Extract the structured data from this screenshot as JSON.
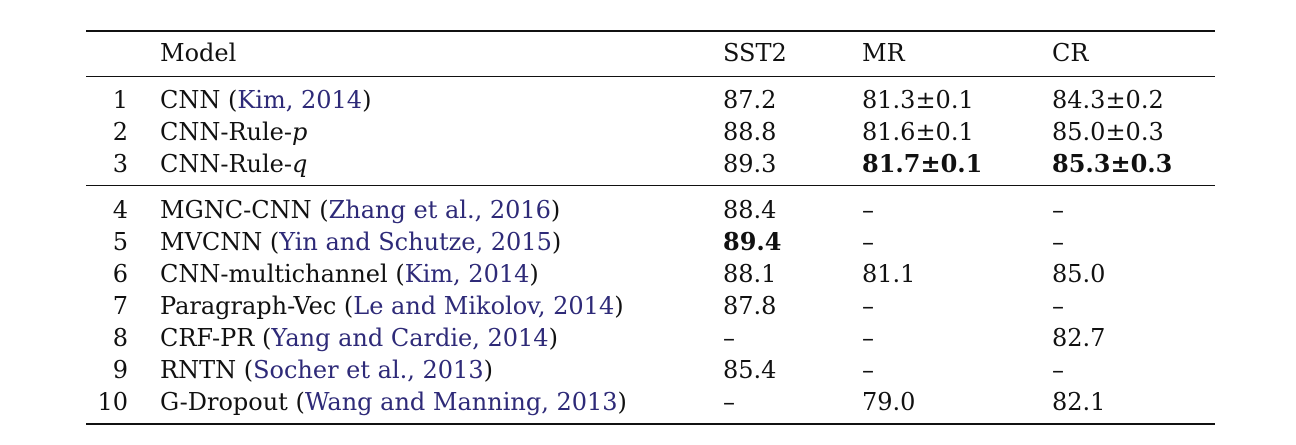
{
  "header": {
    "model": "Model",
    "sst2": "SST2",
    "mr": "MR",
    "cr": "CR"
  },
  "rows": [
    {
      "num": "1",
      "model": "CNN",
      "paren_open": " (",
      "cite": "Kim, 2014",
      "paren_close": ")",
      "suffix": "",
      "sst2": "87.2",
      "mr": "81.3±0.1",
      "cr": "84.3±0.2"
    },
    {
      "num": "2",
      "model": "CNN-Rule-",
      "suffix": "p",
      "sst2": "88.8",
      "mr": "81.6±0.1",
      "cr": "85.0±0.3"
    },
    {
      "num": "3",
      "model": "CNN-Rule-",
      "suffix": "q",
      "sst2": "89.3",
      "mr": "81.7±0.1",
      "cr": "85.3±0.3"
    },
    {
      "num": "4",
      "model": "MGNC-CNN",
      "paren_open": " (",
      "cite": "Zhang et al., 2016",
      "paren_close": ")",
      "sst2": "88.4",
      "mr": "–",
      "cr": "–"
    },
    {
      "num": "5",
      "model": "MVCNN",
      "paren_open": " (",
      "cite": "Yin and Schutze, 2015",
      "paren_close": ")",
      "sst2": "89.4",
      "mr": "–",
      "cr": "–"
    },
    {
      "num": "6",
      "model": "CNN-multichannel",
      "paren_open": " (",
      "cite": "Kim, 2014",
      "paren_close": ")",
      "sst2": "88.1",
      "mr": "81.1",
      "cr": "85.0"
    },
    {
      "num": "7",
      "model": "Paragraph-Vec",
      "paren_open": " (",
      "cite": "Le and Mikolov, 2014",
      "paren_close": ")",
      "sst2": "87.8",
      "mr": "–",
      "cr": "–"
    },
    {
      "num": "8",
      "model": "CRF-PR",
      "paren_open": " (",
      "cite": "Yang and Cardie, 2014",
      "paren_close": ")",
      "sst2": "–",
      "mr": "–",
      "cr": "82.7"
    },
    {
      "num": "9",
      "model": "RNTN",
      "paren_open": " (",
      "cite": "Socher et al., 2013",
      "paren_close": ")",
      "sst2": "85.4",
      "mr": "–",
      "cr": "–"
    },
    {
      "num": "10",
      "model": "G-Dropout",
      "paren_open": " (",
      "cite": "Wang and Manning, 2013",
      "paren_close": ")",
      "sst2": "–",
      "mr": "79.0",
      "cr": "82.1"
    }
  ]
}
